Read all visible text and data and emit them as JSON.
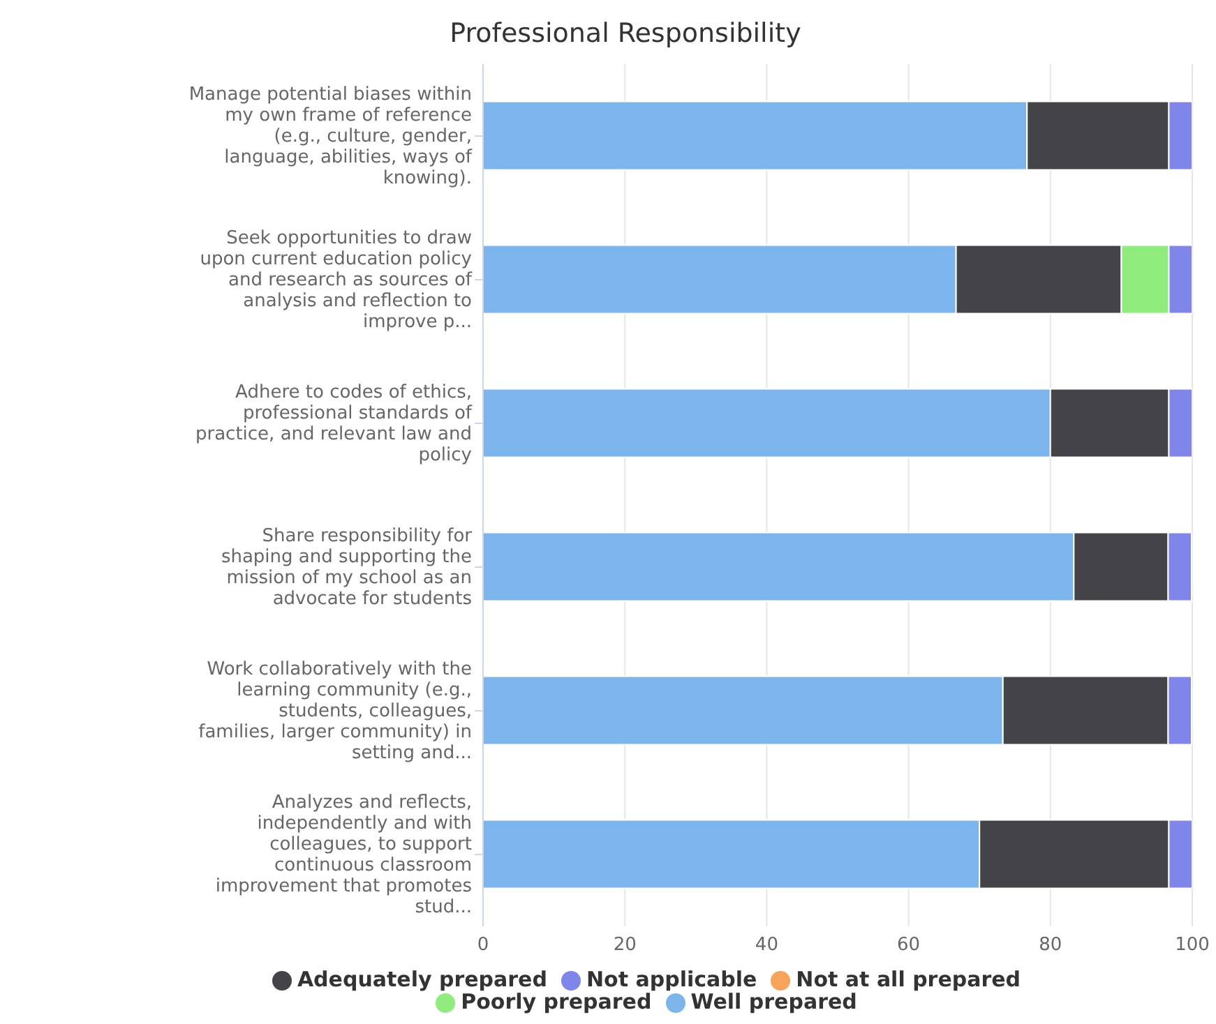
{
  "chart_data": {
    "type": "bar",
    "orientation": "horizontal",
    "stacked": true,
    "title": "Professional Responsibility",
    "categories": [
      "Manage potential biases within my own frame of reference (e.g., culture, gender, language, abilities, ways of knowing).",
      "Seek opportunities to draw upon current education policy and research as sources of analysis and reflection to improve p...",
      "Adhere to codes of ethics, professional standards of practice, and relevant law and policy",
      "Share responsibility for shaping and supporting the mission of my school as an advocate for students",
      "Work collaboratively with the learning community (e.g., students, colleagues, families, larger community) in setting and...",
      "Analyzes and reflects, independently and with colleagues, to support continuous classroom improvement that promotes stud..."
    ],
    "series": [
      {
        "name": "Well prepared",
        "color": "#7cb5ec",
        "values": [
          76.7,
          66.7,
          80,
          83.3,
          73.3,
          70
        ]
      },
      {
        "name": "Adequately prepared",
        "color": "#434348",
        "values": [
          20,
          23.3,
          16.7,
          13.3,
          23.3,
          26.7
        ]
      },
      {
        "name": "Poorly prepared",
        "color": "#90ed7d",
        "values": [
          0,
          6.7,
          0,
          0,
          0,
          0
        ]
      },
      {
        "name": "Not at all prepared",
        "color": "#f7a35c",
        "values": [
          0,
          0,
          0,
          0,
          0,
          0
        ]
      },
      {
        "name": "Not applicable",
        "color": "#8085e9",
        "values": [
          3.3,
          3.3,
          3.3,
          3.3,
          3.3,
          3.3
        ]
      }
    ],
    "xlim": [
      0,
      100
    ],
    "xticks": [
      0,
      20,
      40,
      60,
      80,
      100
    ],
    "grid": "x",
    "legend": "bottom"
  }
}
